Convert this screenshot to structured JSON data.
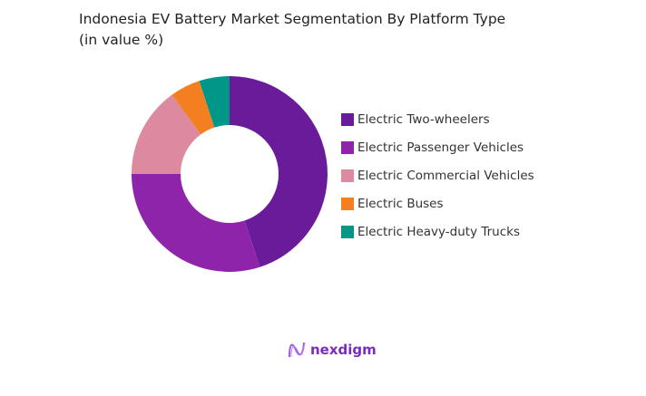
{
  "chart_data": {
    "type": "pie",
    "variant": "donut",
    "title_line1": "Indonesia EV Battery Market Segmentation By Platform Type",
    "title_line2": "(in value %)",
    "categories": [
      "Electric Two-wheelers",
      "Electric Passenger Vehicles",
      "Electric Commercial Vehicles",
      "Electric Buses",
      "Electric Heavy-duty Trucks"
    ],
    "values": [
      45,
      30,
      15,
      5,
      5
    ],
    "unit": "%",
    "colors": [
      "#6a1b9a",
      "#8e24aa",
      "#dd8aa0",
      "#f47f20",
      "#009688"
    ],
    "legend_position": "right"
  },
  "brand": {
    "name": "nexdigm",
    "color": "#7b2cbf"
  }
}
